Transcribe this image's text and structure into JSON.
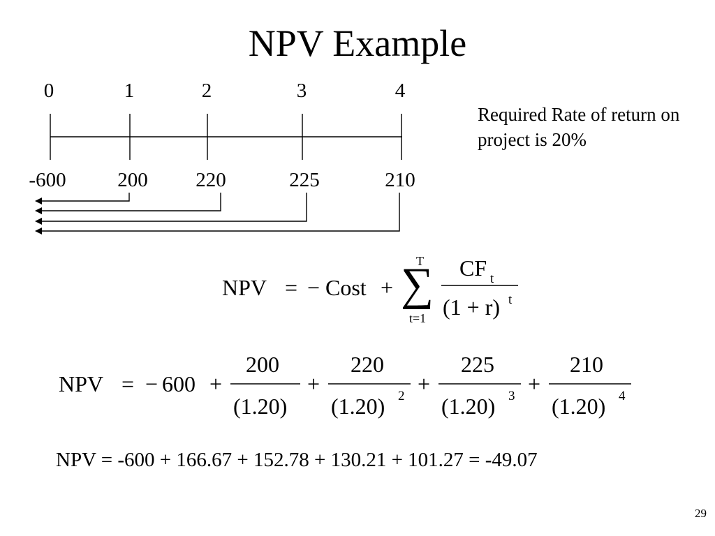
{
  "slide": {
    "title": "NPV Example",
    "page_number": "29"
  },
  "timeline": {
    "periods": [
      "0",
      "1",
      "2",
      "3",
      "4"
    ],
    "cash_flows": [
      "-600",
      "200",
      "220",
      "225",
      "210"
    ]
  },
  "note": {
    "text": "Required Rate of return on project is 20%"
  },
  "general_formula": {
    "lhs": "NPV",
    "equals": "=",
    "minus": "−",
    "cost": "Cost",
    "plus": "+",
    "sum_upper": "T",
    "sum_lower": "t=1",
    "sigma": "∑",
    "numerator": "CF",
    "numerator_sub": "t",
    "denominator": "(1 + r)",
    "denominator_exp": "t"
  },
  "numeric_formula": {
    "lhs": "NPV",
    "equals": "=",
    "minus": "−",
    "cost": "600",
    "plus": "+",
    "terms": [
      {
        "numerator": "200",
        "denominator": "(1.20)",
        "exponent": ""
      },
      {
        "numerator": "220",
        "denominator": "(1.20)",
        "exponent": "2"
      },
      {
        "numerator": "225",
        "denominator": "(1.20)",
        "exponent": "3"
      },
      {
        "numerator": "210",
        "denominator": "(1.20)",
        "exponent": "4"
      }
    ]
  },
  "result": {
    "text": "NPV = -600 + 166.67 + 152.78 + 130.21 + 101.27 = -49.07"
  }
}
